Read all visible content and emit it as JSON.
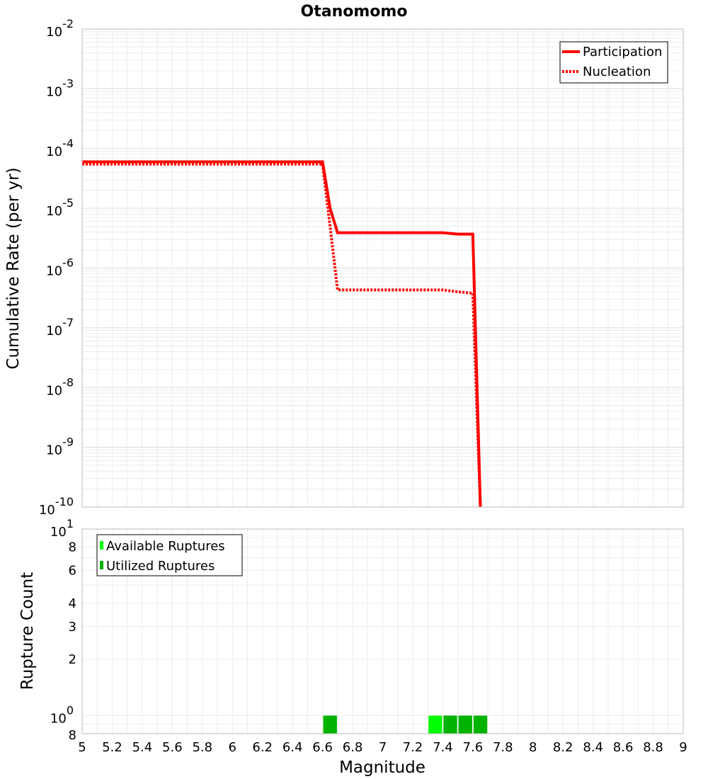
{
  "chart_data": [
    {
      "type": "line",
      "title": "Otanomomo",
      "xlabel": "",
      "ylabel": "Cumulative Rate (per yr)",
      "xlim": [
        5,
        9
      ],
      "ylim": [
        1e-10,
        0.01
      ],
      "yscale": "log",
      "grid": true,
      "legend_position": "top-right",
      "series": [
        {
          "name": "Participation",
          "style": "solid",
          "color": "#ff0000",
          "x": [
            5.0,
            6.6,
            6.65,
            6.7,
            7.4,
            7.5,
            7.6,
            7.65
          ],
          "y": [
            6e-05,
            6e-05,
            1e-05,
            3.9e-06,
            3.9e-06,
            3.7e-06,
            3.7e-06,
            1e-10
          ]
        },
        {
          "name": "Nucleation",
          "style": "dotted",
          "color": "#ff0000",
          "x": [
            5.0,
            6.6,
            6.65,
            6.7,
            7.4,
            7.5,
            7.6,
            7.65
          ],
          "y": [
            5.5e-05,
            5.5e-05,
            5e-06,
            4.3e-07,
            4.3e-07,
            4e-07,
            3.8e-07,
            1e-10
          ]
        }
      ]
    },
    {
      "type": "bar",
      "title": "",
      "xlabel": "Magnitude",
      "ylabel": "Rupture Count",
      "xlim": [
        5,
        9
      ],
      "ylim": [
        0.8,
        10
      ],
      "yscale": "log",
      "grid": true,
      "legend_position": "top-left",
      "x_ticks": [
        "5",
        "5.2",
        "5.4",
        "5.6",
        "5.8",
        "6",
        "6.2",
        "6.4",
        "6.6",
        "6.8",
        "7",
        "7.2",
        "7.4",
        "7.6",
        "7.8",
        "8",
        "8.2",
        "8.4",
        "8.6",
        "8.8",
        "9"
      ],
      "bin_width": 0.1,
      "series": [
        {
          "name": "Available Ruptures",
          "color": "#00ff00",
          "x": [
            6.65,
            7.35,
            7.45,
            7.55,
            7.65
          ],
          "values": [
            1,
            1,
            1,
            1,
            1
          ]
        },
        {
          "name": "Utilized Ruptures",
          "color": "#00b300",
          "x": [
            6.65,
            7.45,
            7.55,
            7.65
          ],
          "values": [
            1,
            1,
            1,
            1
          ]
        }
      ]
    }
  ]
}
